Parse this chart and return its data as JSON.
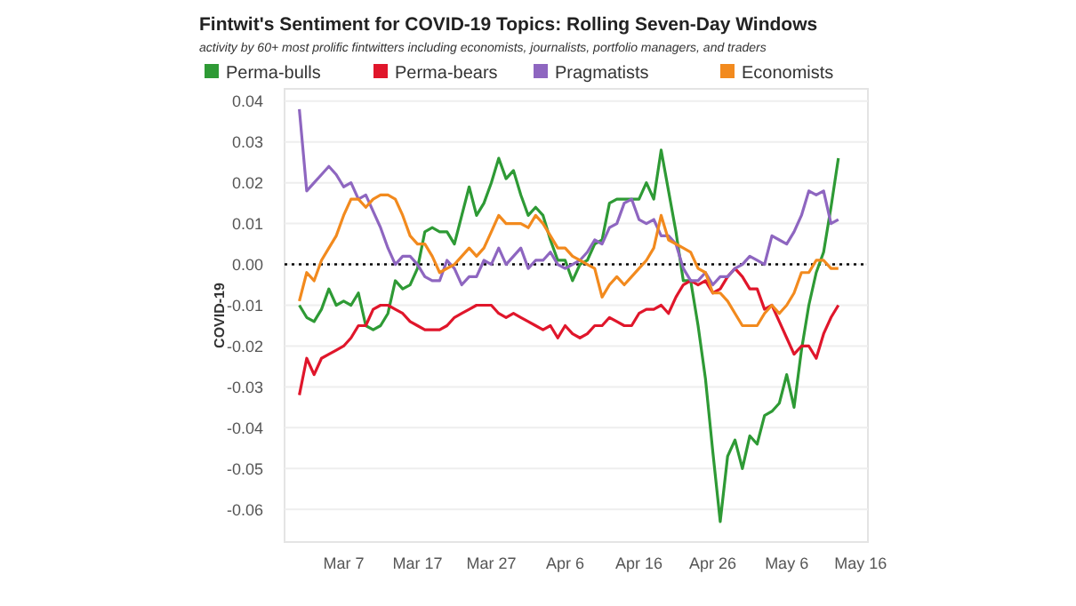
{
  "chart_data": {
    "type": "line",
    "title": "Fintwit's Sentiment for COVID-19 Topics: Rolling Seven-Day Windows",
    "subtitle": "activity by 60+ most prolific fintwitters including economists, journalists, portfolio managers, and traders",
    "ylabel": "COVID-19",
    "x": [
      "--03-01",
      "--03-02",
      "--03-03",
      "--03-04",
      "--03-05",
      "--03-06",
      "--03-07",
      "--03-08",
      "--03-09",
      "--03-10",
      "--03-11",
      "--03-12",
      "--03-13",
      "--03-14",
      "--03-15",
      "--03-16",
      "--03-17",
      "--03-18",
      "--03-19",
      "--03-20",
      "--03-21",
      "--03-22",
      "--03-23",
      "--03-24",
      "--03-25",
      "--03-26",
      "--03-27",
      "--03-28",
      "--03-29",
      "--03-30",
      "--03-31",
      "--04-01",
      "--04-02",
      "--04-03",
      "--04-04",
      "--04-05",
      "--04-06",
      "--04-07",
      "--04-08",
      "--04-09",
      "--04-10",
      "--04-11",
      "--04-12",
      "--04-13",
      "--04-14",
      "--04-15",
      "--04-16",
      "--04-17",
      "--04-18",
      "--04-19",
      "--04-20",
      "--04-21",
      "--04-22",
      "--04-23",
      "--04-24",
      "--04-25",
      "--04-26",
      "--04-27",
      "--04-28",
      "--04-29",
      "--04-30",
      "--05-01",
      "--05-02",
      "--05-03",
      "--05-04",
      "--05-05",
      "--05-06",
      "--05-07",
      "--05-08",
      "--05-09",
      "--05-10",
      "--05-11",
      "--05-12",
      "--05-13"
    ],
    "series": [
      {
        "name": "Perma-bulls",
        "color": "#2e9a35",
        "values": [
          -0.01,
          -0.013,
          -0.014,
          -0.011,
          -0.006,
          -0.01,
          -0.009,
          -0.01,
          -0.007,
          -0.015,
          -0.016,
          -0.015,
          -0.012,
          -0.004,
          -0.006,
          -0.005,
          -0.001,
          0.008,
          0.009,
          0.008,
          0.008,
          0.005,
          0.012,
          0.019,
          0.012,
          0.015,
          0.02,
          0.026,
          0.021,
          0.023,
          0.017,
          0.012,
          0.014,
          0.012,
          0.006,
          0.001,
          0.001,
          -0.004,
          0.0,
          0.001,
          0.005,
          0.006,
          0.015,
          0.016,
          0.016,
          0.016,
          0.016,
          0.02,
          0.016,
          0.028,
          0.018,
          0.008,
          -0.004,
          -0.004,
          -0.015,
          -0.028,
          -0.046,
          -0.063,
          -0.047,
          -0.043,
          -0.05,
          -0.042,
          -0.044,
          -0.037,
          -0.036,
          -0.034,
          -0.027,
          -0.035,
          -0.021,
          -0.01,
          -0.002,
          0.003,
          0.014,
          0.026
        ]
      },
      {
        "name": "Perma-bears",
        "color": "#e0162b",
        "values": [
          -0.032,
          -0.023,
          -0.027,
          -0.023,
          -0.022,
          -0.021,
          -0.02,
          -0.018,
          -0.015,
          -0.015,
          -0.011,
          -0.01,
          -0.01,
          -0.011,
          -0.012,
          -0.014,
          -0.015,
          -0.016,
          -0.016,
          -0.016,
          -0.015,
          -0.013,
          -0.012,
          -0.011,
          -0.01,
          -0.01,
          -0.01,
          -0.012,
          -0.013,
          -0.012,
          -0.013,
          -0.014,
          -0.015,
          -0.016,
          -0.015,
          -0.018,
          -0.015,
          -0.017,
          -0.018,
          -0.017,
          -0.015,
          -0.015,
          -0.013,
          -0.014,
          -0.015,
          -0.015,
          -0.012,
          -0.011,
          -0.011,
          -0.01,
          -0.012,
          -0.008,
          -0.005,
          -0.004,
          -0.005,
          -0.004,
          -0.007,
          -0.006,
          -0.003,
          -0.001,
          -0.003,
          -0.006,
          -0.006,
          -0.011,
          -0.01,
          -0.014,
          -0.018,
          -0.022,
          -0.02,
          -0.02,
          -0.023,
          -0.017,
          -0.013,
          -0.01
        ]
      },
      {
        "name": "Pragmatists",
        "color": "#8e66c0",
        "values": [
          0.038,
          0.018,
          0.02,
          0.022,
          0.024,
          0.022,
          0.019,
          0.02,
          0.016,
          0.017,
          0.013,
          0.009,
          0.004,
          0.0,
          0.002,
          0.002,
          0.0,
          -0.003,
          -0.004,
          -0.004,
          0.001,
          -0.001,
          -0.005,
          -0.003,
          -0.003,
          0.001,
          0.0,
          0.004,
          0.0,
          0.002,
          0.004,
          -0.001,
          0.001,
          0.001,
          0.003,
          0.0,
          -0.001,
          0.0,
          0.001,
          0.003,
          0.006,
          0.005,
          0.009,
          0.01,
          0.015,
          0.016,
          0.011,
          0.01,
          0.011,
          0.007,
          0.007,
          0.005,
          -0.001,
          -0.004,
          -0.004,
          -0.002,
          -0.005,
          -0.003,
          -0.003,
          -0.001,
          0.0,
          0.002,
          0.001,
          0.0,
          0.007,
          0.006,
          0.005,
          0.008,
          0.012,
          0.018,
          0.017,
          0.018,
          0.01,
          0.011
        ]
      },
      {
        "name": "Economists",
        "color": "#f28a1e",
        "values": [
          -0.009,
          -0.002,
          -0.004,
          0.001,
          0.004,
          0.007,
          0.012,
          0.016,
          0.016,
          0.014,
          0.016,
          0.017,
          0.017,
          0.016,
          0.012,
          0.007,
          0.005,
          0.005,
          0.002,
          -0.002,
          -0.001,
          0.0,
          0.002,
          0.004,
          0.002,
          0.004,
          0.008,
          0.012,
          0.01,
          0.01,
          0.01,
          0.009,
          0.012,
          0.01,
          0.007,
          0.004,
          0.004,
          0.002,
          0.001,
          0.0,
          -0.001,
          -0.008,
          -0.005,
          -0.003,
          -0.005,
          -0.003,
          -0.001,
          0.001,
          0.004,
          0.012,
          0.006,
          0.005,
          0.004,
          0.003,
          -0.001,
          -0.002,
          -0.007,
          -0.007,
          -0.009,
          -0.012,
          -0.015,
          -0.015,
          -0.015,
          -0.012,
          -0.01,
          -0.012,
          -0.01,
          -0.007,
          -0.002,
          -0.002,
          0.001,
          0.001,
          -0.001,
          -0.001
        ]
      }
    ],
    "xlim": [
      "--02-27",
      "--05-17"
    ],
    "xticks": [
      {
        "value": "--03-07",
        "label": "Mar 7"
      },
      {
        "value": "--03-17",
        "label": "Mar 17"
      },
      {
        "value": "--03-27",
        "label": "Mar 27"
      },
      {
        "value": "--04-06",
        "label": "Apr 6"
      },
      {
        "value": "--04-16",
        "label": "Apr 16"
      },
      {
        "value": "--04-26",
        "label": "Apr 26"
      },
      {
        "value": "--05-06",
        "label": "May 6"
      },
      {
        "value": "--05-16",
        "label": "May 16"
      }
    ],
    "ylim": [
      -0.068,
      0.043
    ],
    "yticks": [
      0.04,
      0.03,
      0.02,
      0.01,
      {
        "value": 0,
        "label": "0.00"
      },
      -0.01,
      -0.02,
      -0.03,
      -0.04,
      -0.05,
      -0.06
    ],
    "ref_lines": [
      {
        "axis": "y",
        "value": 0,
        "color": "#000000",
        "line_style": "dotted"
      }
    ],
    "grid": "y",
    "legend": "top left",
    "marker": "none",
    "line_style": "solid"
  }
}
